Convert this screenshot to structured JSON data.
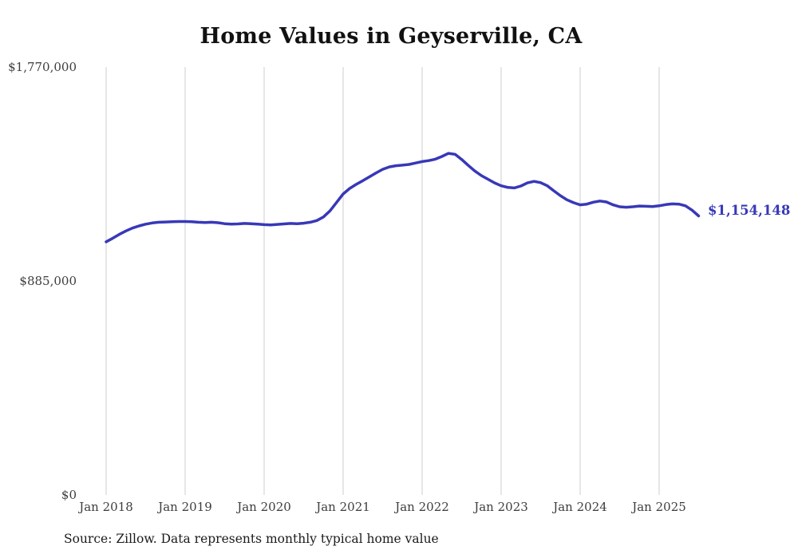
{
  "chart_data": {
    "type": "line",
    "title": "Home Values in Geyserville, CA",
    "source": "Source: Zillow. Data represents monthly typical home value",
    "latest_value_label": "$1,154,148",
    "series_name": "Monthly typical home value",
    "x_start": "2018-01",
    "x_end": "2025-07",
    "frequency": "monthly",
    "x_tick_labels": [
      "Jan 2018",
      "Jan 2019",
      "Jan 2020",
      "Jan 2021",
      "Jan 2022",
      "Jan 2023",
      "Jan 2024",
      "Jan 2025"
    ],
    "y_ticks": [
      0,
      885000,
      1770000
    ],
    "y_tick_labels": [
      "$0",
      "$885,000",
      "$1,770,000"
    ],
    "ylim": [
      0,
      1770000
    ],
    "grid": "vertical-only",
    "legend": "none",
    "line_color": "#3838b8",
    "grid_color": "#cccccc",
    "values": [
      1047000,
      1062000,
      1078000,
      1092000,
      1104000,
      1113000,
      1120000,
      1125000,
      1128000,
      1129000,
      1130000,
      1131000,
      1131000,
      1130000,
      1128000,
      1127000,
      1128000,
      1126000,
      1122000,
      1120000,
      1121000,
      1123000,
      1122000,
      1120000,
      1118000,
      1117000,
      1119000,
      1121000,
      1123000,
      1122000,
      1124000,
      1128000,
      1135000,
      1150000,
      1175000,
      1210000,
      1245000,
      1268000,
      1285000,
      1300000,
      1316000,
      1332000,
      1347000,
      1357000,
      1362000,
      1364000,
      1367000,
      1373000,
      1379000,
      1383000,
      1389000,
      1400000,
      1413000,
      1409000,
      1388000,
      1363000,
      1340000,
      1321000,
      1306000,
      1291000,
      1279000,
      1272000,
      1270000,
      1278000,
      1291000,
      1297000,
      1292000,
      1279000,
      1258000,
      1238000,
      1221000,
      1209000,
      1200000,
      1203000,
      1211000,
      1216000,
      1212000,
      1200000,
      1192000,
      1190000,
      1192000,
      1195000,
      1194000,
      1193000,
      1196000,
      1201000,
      1204000,
      1203000,
      1196000,
      1178000,
      1154148
    ]
  }
}
